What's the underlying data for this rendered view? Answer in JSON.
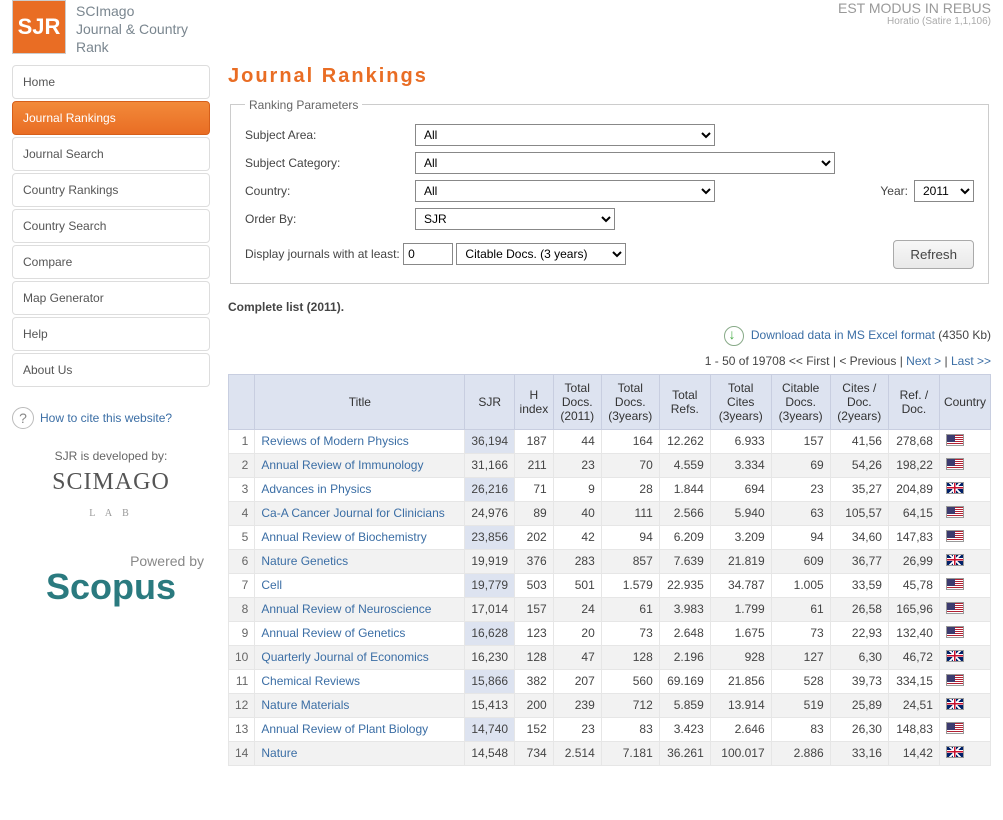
{
  "header": {
    "logo_text": "SJR",
    "brand_line1": "SCImago",
    "brand_line2": "Journal & Country",
    "brand_line3": "Rank",
    "motto": "EST MODUS IN REBUS",
    "motto_sub": "Horatio (Satire 1,1,106)"
  },
  "nav": {
    "items": [
      {
        "label": "Home",
        "active": false
      },
      {
        "label": "Journal Rankings",
        "active": true
      },
      {
        "label": "Journal Search",
        "active": false
      },
      {
        "label": "Country Rankings",
        "active": false
      },
      {
        "label": "Country Search",
        "active": false
      },
      {
        "label": "Compare",
        "active": false
      },
      {
        "label": "Map Generator",
        "active": false
      },
      {
        "label": "Help",
        "active": false
      },
      {
        "label": "About Us",
        "active": false
      }
    ],
    "cite_text": "How to cite this website?",
    "developed_by": "SJR is developed by:",
    "scimago_name": "SCIMAGO",
    "scimago_lab": "L A B",
    "powered_label": "Powered by",
    "scopus": "Scopus"
  },
  "page_title": "Journal Rankings",
  "params": {
    "legend": "Ranking Parameters",
    "labels": {
      "subject_area": "Subject Area:",
      "subject_category": "Subject Category:",
      "country": "Country:",
      "order_by": "Order By:",
      "year": "Year:",
      "display_prefix": "Display journals with at least:"
    },
    "values": {
      "subject_area": "All",
      "subject_category": "All",
      "country": "All",
      "order_by": "SJR",
      "year": "2011",
      "min_value": "0",
      "doc_type": "Citable Docs. (3 years)"
    },
    "refresh_label": "Refresh"
  },
  "list_label": "Complete list (2011).",
  "download": {
    "link_text": "Download data in MS Excel format",
    "size_text": "(4350 Kb)"
  },
  "pager": {
    "range_text": "1 - 50 of 19708",
    "first": "<< First",
    "prev": "< Previous",
    "next": "Next >",
    "last": "Last >>"
  },
  "table": {
    "headers": [
      "",
      "Title",
      "SJR",
      "H index",
      "Total Docs. (2011)",
      "Total Docs. (3years)",
      "Total Refs.",
      "Total Cites (3years)",
      "Citable Docs. (3years)",
      "Cites / Doc. (2years)",
      "Ref. / Doc.",
      "Country"
    ],
    "rows": [
      {
        "rank": 1,
        "title": "Reviews of Modern Physics",
        "sjr": "36,194",
        "h": "187",
        "d2011": "44",
        "d3y": "164",
        "refs": "12.262",
        "cites": "6.933",
        "cd": "157",
        "cpd": "41,56",
        "rpd": "278,68",
        "country": "us"
      },
      {
        "rank": 2,
        "title": "Annual Review of Immunology",
        "sjr": "31,166",
        "h": "211",
        "d2011": "23",
        "d3y": "70",
        "refs": "4.559",
        "cites": "3.334",
        "cd": "69",
        "cpd": "54,26",
        "rpd": "198,22",
        "country": "us"
      },
      {
        "rank": 3,
        "title": "Advances in Physics",
        "sjr": "26,216",
        "h": "71",
        "d2011": "9",
        "d3y": "28",
        "refs": "1.844",
        "cites": "694",
        "cd": "23",
        "cpd": "35,27",
        "rpd": "204,89",
        "country": "uk"
      },
      {
        "rank": 4,
        "title": "Ca-A Cancer Journal for Clinicians",
        "sjr": "24,976",
        "h": "89",
        "d2011": "40",
        "d3y": "111",
        "refs": "2.566",
        "cites": "5.940",
        "cd": "63",
        "cpd": "105,57",
        "rpd": "64,15",
        "country": "us"
      },
      {
        "rank": 5,
        "title": "Annual Review of Biochemistry",
        "sjr": "23,856",
        "h": "202",
        "d2011": "42",
        "d3y": "94",
        "refs": "6.209",
        "cites": "3.209",
        "cd": "94",
        "cpd": "34,60",
        "rpd": "147,83",
        "country": "us"
      },
      {
        "rank": 6,
        "title": "Nature Genetics",
        "sjr": "19,919",
        "h": "376",
        "d2011": "283",
        "d3y": "857",
        "refs": "7.639",
        "cites": "21.819",
        "cd": "609",
        "cpd": "36,77",
        "rpd": "26,99",
        "country": "uk"
      },
      {
        "rank": 7,
        "title": "Cell",
        "sjr": "19,779",
        "h": "503",
        "d2011": "501",
        "d3y": "1.579",
        "refs": "22.935",
        "cites": "34.787",
        "cd": "1.005",
        "cpd": "33,59",
        "rpd": "45,78",
        "country": "us"
      },
      {
        "rank": 8,
        "title": "Annual Review of Neuroscience",
        "sjr": "17,014",
        "h": "157",
        "d2011": "24",
        "d3y": "61",
        "refs": "3.983",
        "cites": "1.799",
        "cd": "61",
        "cpd": "26,58",
        "rpd": "165,96",
        "country": "us"
      },
      {
        "rank": 9,
        "title": "Annual Review of Genetics",
        "sjr": "16,628",
        "h": "123",
        "d2011": "20",
        "d3y": "73",
        "refs": "2.648",
        "cites": "1.675",
        "cd": "73",
        "cpd": "22,93",
        "rpd": "132,40",
        "country": "us"
      },
      {
        "rank": 10,
        "title": "Quarterly Journal of Economics",
        "sjr": "16,230",
        "h": "128",
        "d2011": "47",
        "d3y": "128",
        "refs": "2.196",
        "cites": "928",
        "cd": "127",
        "cpd": "6,30",
        "rpd": "46,72",
        "country": "uk"
      },
      {
        "rank": 11,
        "title": "Chemical Reviews",
        "sjr": "15,866",
        "h": "382",
        "d2011": "207",
        "d3y": "560",
        "refs": "69.169",
        "cites": "21.856",
        "cd": "528",
        "cpd": "39,73",
        "rpd": "334,15",
        "country": "us"
      },
      {
        "rank": 12,
        "title": "Nature Materials",
        "sjr": "15,413",
        "h": "200",
        "d2011": "239",
        "d3y": "712",
        "refs": "5.859",
        "cites": "13.914",
        "cd": "519",
        "cpd": "25,89",
        "rpd": "24,51",
        "country": "uk"
      },
      {
        "rank": 13,
        "title": "Annual Review of Plant Biology",
        "sjr": "14,740",
        "h": "152",
        "d2011": "23",
        "d3y": "83",
        "refs": "3.423",
        "cites": "2.646",
        "cd": "83",
        "cpd": "26,30",
        "rpd": "148,83",
        "country": "us"
      },
      {
        "rank": 14,
        "title": "Nature",
        "sjr": "14,548",
        "h": "734",
        "d2011": "2.514",
        "d3y": "7.181",
        "refs": "36.261",
        "cites": "100.017",
        "cd": "2.886",
        "cpd": "33,16",
        "rpd": "14,42",
        "country": "uk"
      }
    ]
  },
  "style": {
    "accent": "#e96d24",
    "link": "#3b6ea5",
    "th_bg": "#dde3f0"
  }
}
